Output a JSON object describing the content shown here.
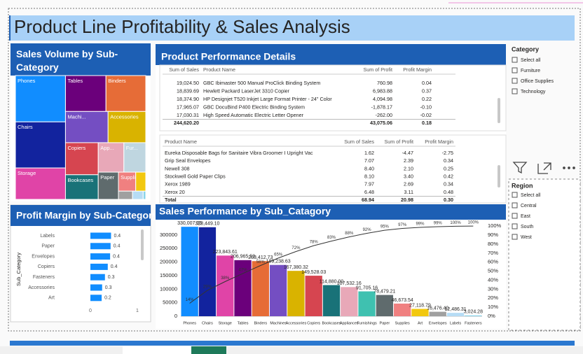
{
  "dashboard": {
    "title": "Product Line Profitability & Sales Analysis"
  },
  "chart_data": [
    {
      "type": "treemap",
      "title": "Sales Volume by Sub-Category",
      "categories": [
        "Phones",
        "Chairs",
        "Storage",
        "Tables",
        "Binders",
        "Machi...",
        "Accessories",
        "Copiers",
        "Bookcases",
        "App...",
        "Fur...",
        "Paper",
        "Suppli...",
        null,
        null,
        null,
        null
      ],
      "values": [
        330007.05,
        328449.1,
        223843.61,
        206965.53,
        203412.73,
        189238.63,
        167380.32,
        149528.03,
        114880.0,
        107532.16,
        91705.16,
        78479.21,
        46673.54,
        27118.79,
        16476.4,
        12486.31,
        3024.28
      ],
      "colors": [
        "#118DFF",
        "#12239E",
        "#E044A7",
        "#6B007B",
        "#E66C37",
        "#744EC2",
        "#D9B300",
        "#D64550",
        "#197278",
        "#E8A8B8",
        "#BFD6E0",
        "#5F6B6D",
        "#F08080",
        "#F2C80F",
        "#A0A0A0",
        "#B6DCF5",
        "#8AD4EB"
      ]
    },
    {
      "type": "barh",
      "title": "Profit Margin by Sub-Category",
      "y_label": "Sub_Category",
      "categories": [
        "Labels",
        "Paper",
        "Envelopes",
        "Copiers",
        "Fasteners",
        "Accessories",
        "Art"
      ],
      "values": [
        0.44,
        0.43,
        0.42,
        0.37,
        0.31,
        0.25,
        0.24
      ],
      "value_labels": [
        "0.4",
        "0.4",
        "0.4",
        "0.4",
        "0.3",
        "0.3",
        "0.2"
      ],
      "color": "#118DFF",
      "xlim": [
        0,
        1
      ],
      "xticks": [
        0,
        1
      ]
    },
    {
      "type": "pareto",
      "title": "Sales Performance by Sub_Catagory",
      "categories": [
        "Phones",
        "Chairs",
        "Storage",
        "Tables",
        "Binders",
        "Machines",
        "Accessories",
        "Copiers",
        "Bookcases",
        "Appliances",
        "Furnishings",
        "Paper",
        "Supplies",
        "Art",
        "Envelopes",
        "Labels",
        "Fasteners"
      ],
      "series": [
        {
          "values": [
            330007.05,
            328449.1,
            223843.61,
            206965.53,
            203412.73,
            189238.63,
            167380.32,
            149528.03,
            114880.0,
            107532.16,
            91705.16,
            78479.21,
            46673.54,
            27118.79,
            16476.4,
            12486.31,
            3024.28
          ],
          "value_labels": [
            "330,007.05",
            "328,449.10",
            "223,843.61",
            "206,965.53",
            "203,412.73",
            "189,238.63",
            "167,380.32",
            "149,528.03",
            "114,880.00",
            "107,532.16",
            "91,705.16",
            "78,479.21",
            "46,673.54",
            "27,118.79",
            "16,476.40",
            "12,486.31",
            "3,024.28"
          ],
          "colors": [
            "#118DFF",
            "#12239E",
            "#E044A7",
            "#6B007B",
            "#E66C37",
            "#744EC2",
            "#D9B300",
            "#D64550",
            "#197278",
            "#E8A8B8",
            "#3FC1B0",
            "#5F6B6D",
            "#F08080",
            "#F2C80F",
            "#A0A0A0",
            "#B6DCF5",
            "#8AD4EB"
          ]
        },
        {
          "axis": "y2",
          "color": "#333333",
          "values": [
            14.37,
            28.66,
            38.41,
            47.42,
            56.27,
            64.51,
            71.8,
            78.31,
            83.31,
            87.99,
            91.98,
            95.4,
            97.43,
            98.61,
            99.33,
            99.87,
            100
          ],
          "value_labels": [
            "14%",
            "29%",
            "38%",
            "47%",
            "56%",
            "65%",
            "72%",
            "78%",
            "83%",
            "88%",
            "92%",
            "95%",
            "97%",
            "99%",
            "99%",
            "100%",
            "100%"
          ]
        }
      ],
      "ylim": [
        0,
        346000
      ],
      "yticks": [
        0,
        50000,
        100000,
        150000,
        200000,
        250000,
        300000
      ],
      "y2lim": [
        0,
        104
      ],
      "y2ticks": [
        {
          "value": 0,
          "label": "0%"
        },
        {
          "value": 10,
          "label": "10%"
        },
        {
          "value": 20,
          "label": "20%"
        },
        {
          "value": 30,
          "label": "30%"
        },
        {
          "value": 40,
          "label": "40%"
        },
        {
          "value": 50,
          "label": "50%"
        },
        {
          "value": 60,
          "label": "60%"
        },
        {
          "value": 70,
          "label": "70%"
        },
        {
          "value": 80,
          "label": "80%"
        },
        {
          "value": 90,
          "label": "90%"
        },
        {
          "value": 100,
          "label": "100%"
        }
      ]
    }
  ],
  "product_details": {
    "title": "Product Performance Details",
    "top_table": {
      "columns": [
        "Sum of Sales",
        "Product Name",
        "Sum of Profit",
        "Profit Margin"
      ],
      "rows": [
        [
          "19,024.50",
          "GBC Ibimaster 500 Manual ProClick Binding System",
          "760.98",
          "0.04"
        ],
        [
          "18,839.69",
          "Hewlett Packard LaserJet 3310 Copier",
          "6,983.88",
          "0.37"
        ],
        [
          "18,374.90",
          "HP Designjet T520 Inkjet Large Format Printer - 24\" Color",
          "4,094.98",
          "0.22"
        ],
        [
          "17,965.07",
          "GBC DocuBind P400 Electric Binding System",
          "-1,878.17",
          "-0.10"
        ],
        [
          "17,030.31",
          "High Speed Automatic Electric Letter Opener",
          "-262.00",
          "-0.02"
        ]
      ],
      "total": [
        "244,620.20",
        null,
        "43,075.06",
        "0.18"
      ]
    },
    "bottom_table": {
      "columns": [
        "Product Name",
        "Sum of Sales",
        "Sum of Profit",
        "Profit Margin"
      ],
      "rows": [
        [
          "Eureka Disposable Bags for Sanitaire Vibra Groomer I Upright Vac",
          "1.62",
          "-4.47",
          "-2.75"
        ],
        [
          "Grip Seal Envelopes",
          "7.07",
          "2.39",
          "0.34"
        ],
        [
          "Newell 308",
          "8.40",
          "2.10",
          "0.25"
        ],
        [
          "Stockwell Gold Paper Clips",
          "8.10",
          "3.40",
          "0.42"
        ],
        [
          "Xerox 1989",
          "7.97",
          "2.69",
          "0.34"
        ],
        [
          "Xerox 20",
          "6.48",
          "3.11",
          "0.48"
        ]
      ],
      "total": [
        "Total",
        "68.94",
        "20.98",
        "0.30"
      ]
    }
  },
  "category_slicer": {
    "title": "Category",
    "options": [
      "Select all",
      "Furniture",
      "Office Supplies",
      "Technology"
    ]
  },
  "region_slicer": {
    "title": "Region",
    "options": [
      "Select all",
      "Central",
      "East",
      "South",
      "West"
    ]
  }
}
